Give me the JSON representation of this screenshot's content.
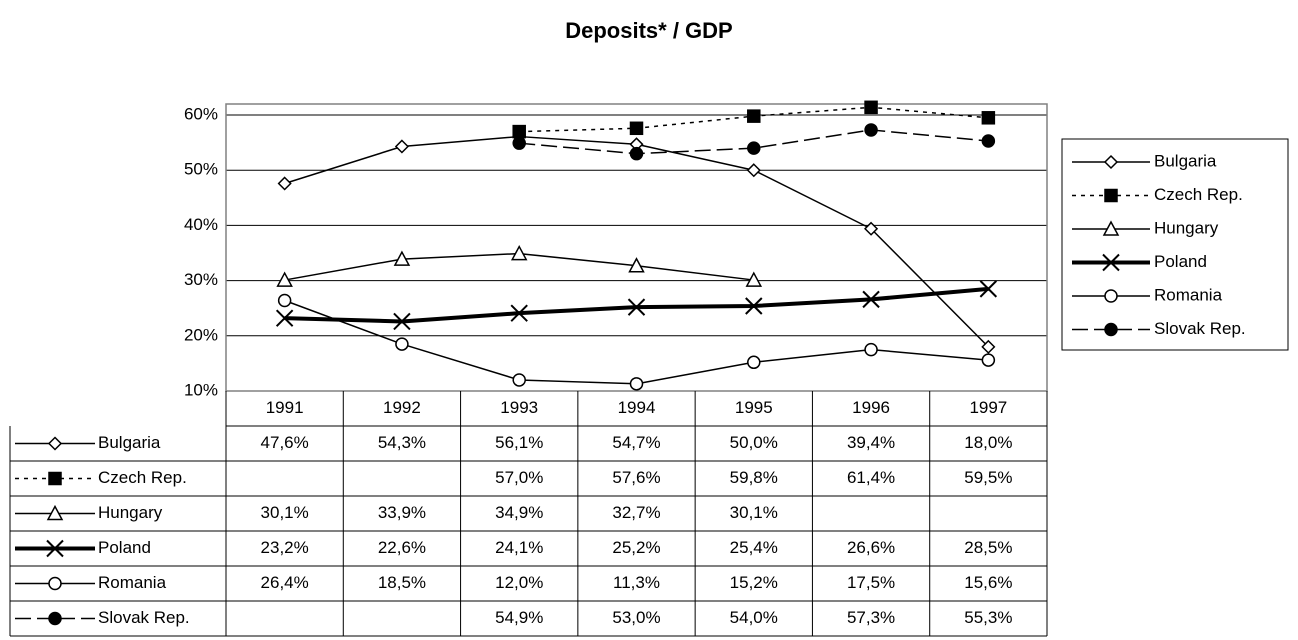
{
  "chart_data": {
    "type": "line",
    "title": "Deposits* / GDP",
    "categories": [
      "1991",
      "1992",
      "1993",
      "1994",
      "1995",
      "1996",
      "1997"
    ],
    "ylim": [
      10,
      62
    ],
    "yticks": [
      {
        "value": 10,
        "label": "10%"
      },
      {
        "value": 20,
        "label": "20%"
      },
      {
        "value": 30,
        "label": "30%"
      },
      {
        "value": 40,
        "label": "40%"
      },
      {
        "value": 50,
        "label": "50%"
      },
      {
        "value": 60,
        "label": "60%"
      }
    ],
    "grid": true,
    "legend": "right",
    "series": [
      {
        "name": "Bulgaria",
        "color": "#000000",
        "marker": "diamond",
        "line_style": "solid",
        "line_width": 1.5,
        "values": [
          47.6,
          54.3,
          56.1,
          54.7,
          50.0,
          39.4,
          18.0
        ],
        "value_labels": [
          "47,6%",
          "54,3%",
          "56,1%",
          "54,7%",
          "50,0%",
          "39,4%",
          "18,0%"
        ]
      },
      {
        "name": "Czech Rep.",
        "color": "#000000",
        "marker": "square",
        "line_style": "dotted",
        "line_width": 1.5,
        "values": [
          null,
          null,
          57.0,
          57.6,
          59.8,
          61.4,
          59.5
        ],
        "value_labels": [
          null,
          null,
          "57,0%",
          "57,6%",
          "59,8%",
          "61,4%",
          "59,5%"
        ]
      },
      {
        "name": "Hungary",
        "color": "#000000",
        "marker": "triangle",
        "line_style": "solid",
        "line_width": 1.5,
        "values": [
          30.1,
          33.9,
          34.9,
          32.7,
          30.1,
          null,
          null
        ],
        "value_labels": [
          "30,1%",
          "33,9%",
          "34,9%",
          "32,7%",
          "30,1%",
          null,
          null
        ]
      },
      {
        "name": "Poland",
        "color": "#000000",
        "marker": "x",
        "line_style": "solid",
        "line_width": 4,
        "values": [
          23.2,
          22.6,
          24.1,
          25.2,
          25.4,
          26.6,
          28.5
        ],
        "value_labels": [
          "23,2%",
          "22,6%",
          "24,1%",
          "25,2%",
          "25,4%",
          "26,6%",
          "28,5%"
        ]
      },
      {
        "name": "Romania",
        "color": "#000000",
        "marker": "circle",
        "line_style": "solid",
        "line_width": 1.5,
        "values": [
          26.4,
          18.5,
          12.0,
          11.3,
          15.2,
          17.5,
          15.6
        ],
        "value_labels": [
          "26,4%",
          "18,5%",
          "12,0%",
          "11,3%",
          "15,2%",
          "17,5%",
          "15,6%"
        ]
      },
      {
        "name": "Slovak Rep.",
        "color": "#000000",
        "marker": "filled-circle",
        "line_style": "dashed",
        "line_width": 1.5,
        "values": [
          null,
          null,
          54.9,
          53.0,
          54.0,
          57.3,
          55.3
        ],
        "value_labels": [
          null,
          null,
          "54,9%",
          "53,0%",
          "54,0%",
          "57,3%",
          "55,3%"
        ]
      }
    ]
  }
}
